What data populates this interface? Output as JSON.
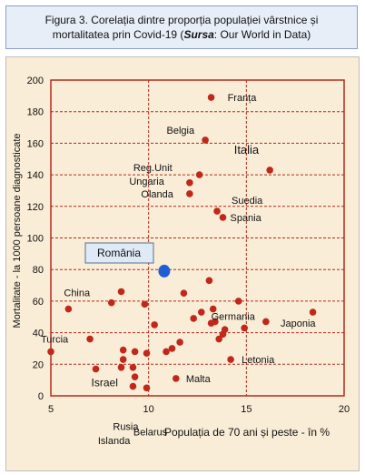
{
  "caption": {
    "line1": "Figura 3. Corelația dintre proporția populației vârstnice și",
    "line2_prefix": "mortalitatea prin Covid-19 (",
    "line2_source": "Sursa",
    "line2_suffix": ": Our World in Data)"
  },
  "chart_data": {
    "type": "scatter",
    "xlabel": "Populația de 70 ani și peste - în %",
    "ylabel": "Mortalitate - la 1000 persoane diagnosticate",
    "xlim": [
      5,
      20
    ],
    "ylim": [
      0,
      200
    ],
    "x_ticks": [
      "5",
      "10",
      "15",
      "20"
    ],
    "y_ticks": [
      "0",
      "20",
      "40",
      "60",
      "80",
      "100",
      "120",
      "140",
      "160",
      "180",
      "200"
    ],
    "grid": true,
    "colors": {
      "points": "#c0281a",
      "highlight": "#1f5fd6",
      "grid": "#b5291d",
      "background": "#f9edd7"
    },
    "highlight": {
      "label": "România",
      "x": 10.8,
      "y": 79
    },
    "labeled_points": [
      {
        "label": "Franța",
        "x": 13.2,
        "y": 189
      },
      {
        "label": "Belgia",
        "x": 12.9,
        "y": 162
      },
      {
        "label": "Italia",
        "x": 16.2,
        "y": 143
      },
      {
        "label": "Reg.Unit",
        "x": 12.6,
        "y": 140
      },
      {
        "label": "Ungaria",
        "x": 12.1,
        "y": 135
      },
      {
        "label": "Olanda",
        "x": 12.1,
        "y": 128
      },
      {
        "label": "Suedia",
        "x": 13.5,
        "y": 117
      },
      {
        "label": "Spania",
        "x": 13.8,
        "y": 113
      },
      {
        "label": "China",
        "x": 5.9,
        "y": 55
      },
      {
        "label": "Germania",
        "x": 16.0,
        "y": 47
      },
      {
        "label": "Japonia",
        "x": 18.4,
        "y": 53
      },
      {
        "label": "Turcia",
        "x": 5.0,
        "y": 28
      },
      {
        "label": "Letonia",
        "x": 14.2,
        "y": 23
      },
      {
        "label": "Israel",
        "x": 7.3,
        "y": 17
      },
      {
        "label": "Malta",
        "x": 11.4,
        "y": 11
      },
      {
        "label": "Rusia",
        "x": 9.2,
        "y": 6
      },
      {
        "label": "Islanda",
        "x": 9.3,
        "y": 12
      },
      {
        "label": "Belarus",
        "x": 9.9,
        "y": 5
      }
    ],
    "other_points": [
      {
        "x": 8.6,
        "y": 66
      },
      {
        "x": 8.1,
        "y": 59
      },
      {
        "x": 9.8,
        "y": 58
      },
      {
        "x": 7.0,
        "y": 36
      },
      {
        "x": 10.3,
        "y": 45
      },
      {
        "x": 11.8,
        "y": 65
      },
      {
        "x": 13.1,
        "y": 73
      },
      {
        "x": 13.3,
        "y": 55
      },
      {
        "x": 14.6,
        "y": 60
      },
      {
        "x": 12.7,
        "y": 53
      },
      {
        "x": 12.3,
        "y": 49
      },
      {
        "x": 13.2,
        "y": 46
      },
      {
        "x": 13.4,
        "y": 47
      },
      {
        "x": 13.9,
        "y": 42
      },
      {
        "x": 13.8,
        "y": 39
      },
      {
        "x": 13.6,
        "y": 36
      },
      {
        "x": 14.9,
        "y": 43
      },
      {
        "x": 8.7,
        "y": 29
      },
      {
        "x": 9.3,
        "y": 28
      },
      {
        "x": 9.9,
        "y": 27
      },
      {
        "x": 8.7,
        "y": 23
      },
      {
        "x": 8.6,
        "y": 18
      },
      {
        "x": 9.2,
        "y": 18
      },
      {
        "x": 10.9,
        "y": 28
      },
      {
        "x": 11.2,
        "y": 30
      },
      {
        "x": 11.6,
        "y": 34
      }
    ]
  }
}
